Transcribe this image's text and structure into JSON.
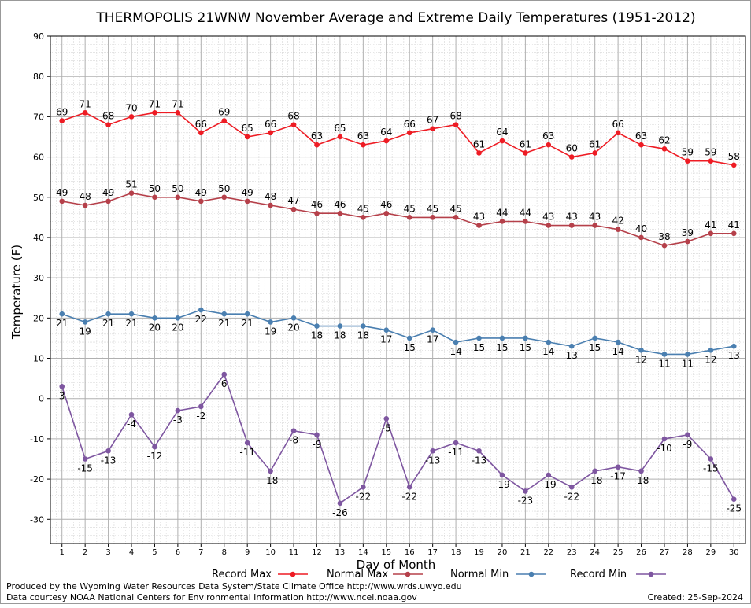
{
  "chart_data": {
    "type": "line",
    "title": "THERMOPOLIS 21WNW November Average and Extreme Daily Temperatures (1951-2012)",
    "xlabel": "Day of Month",
    "ylabel": "Temperature (F)",
    "x": [
      1,
      2,
      3,
      4,
      5,
      6,
      7,
      8,
      9,
      10,
      11,
      12,
      13,
      14,
      15,
      16,
      17,
      18,
      19,
      20,
      21,
      22,
      23,
      24,
      25,
      26,
      27,
      28,
      29,
      30
    ],
    "xlim": [
      0.5,
      30.5
    ],
    "ylim": [
      -36,
      90
    ],
    "yticks": [
      -30,
      -20,
      -10,
      0,
      10,
      20,
      30,
      40,
      50,
      60,
      70,
      80,
      90
    ],
    "grid": true,
    "legend_position": "bottom",
    "series": [
      {
        "name": "Record Max",
        "color": "#ee1c24",
        "label_position": "above",
        "values": [
          69,
          71,
          68,
          70,
          71,
          71,
          66,
          69,
          65,
          66,
          68,
          63,
          65,
          63,
          64,
          66,
          67,
          68,
          61,
          64,
          61,
          63,
          60,
          61,
          66,
          63,
          62,
          59,
          59,
          58
        ]
      },
      {
        "name": "Normal Max",
        "color": "#b5404a",
        "label_position": "above",
        "values": [
          49,
          48,
          49,
          51,
          50,
          50,
          49,
          50,
          49,
          48,
          47,
          46,
          46,
          45,
          46,
          45,
          45,
          45,
          43,
          44,
          44,
          43,
          43,
          43,
          42,
          40,
          38,
          39,
          41,
          41
        ]
      },
      {
        "name": "Normal Min",
        "color": "#4a7fb0",
        "label_position": "below",
        "values": [
          21,
          19,
          21,
          21,
          20,
          20,
          22,
          21,
          21,
          19,
          20,
          18,
          18,
          18,
          17,
          15,
          17,
          14,
          15,
          15,
          15,
          14,
          13,
          15,
          14,
          12,
          11,
          11,
          12,
          13
        ]
      },
      {
        "name": "Record Min",
        "color": "#7e56a0",
        "label_position": "below",
        "values": [
          3,
          -15,
          -13,
          -4,
          -12,
          -3,
          -2,
          6,
          -11,
          -18,
          -8,
          -9,
          -26,
          -22,
          -5,
          -22,
          -13,
          -11,
          -13,
          -19,
          -23,
          -19,
          -22,
          -18,
          -17,
          -18,
          -10,
          -9,
          -15,
          -25
        ]
      }
    ]
  },
  "footer": {
    "produced_by": "Produced by the Wyoming Water Resources Data System/State Climate Office http://www.wrds.uwyo.edu",
    "data_courtesy": "Data courtesy NOAA National Centers for Environmental Information http://www.ncei.noaa.gov",
    "created": "Created:  25-Sep-2024"
  }
}
